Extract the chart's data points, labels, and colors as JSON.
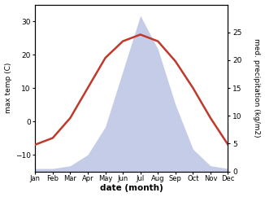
{
  "months": [
    "Jan",
    "Feb",
    "Mar",
    "Apr",
    "May",
    "Jun",
    "Jul",
    "Aug",
    "Sep",
    "Oct",
    "Nov",
    "Dec"
  ],
  "temperature": [
    -7,
    -5,
    1,
    10,
    19,
    24,
    26,
    24,
    18,
    10,
    1,
    -7
  ],
  "precipitation": [
    0.5,
    0.5,
    1,
    3,
    8,
    18,
    28,
    22,
    12,
    4,
    1,
    0.5
  ],
  "temp_color": "#c0392b",
  "precip_fill_color": "#c5cce8",
  "temp_ylim": [
    -15,
    35
  ],
  "precip_ylim": [
    0,
    30
  ],
  "temp_yticks": [
    -10,
    0,
    10,
    20,
    30
  ],
  "precip_yticks": [
    0,
    5,
    10,
    15,
    20,
    25
  ],
  "xlabel": "date (month)",
  "ylabel_left": "max temp (C)",
  "ylabel_right": "med. precipitation (kg/m2)",
  "bg_color": "#ffffff",
  "line_width": 1.8
}
